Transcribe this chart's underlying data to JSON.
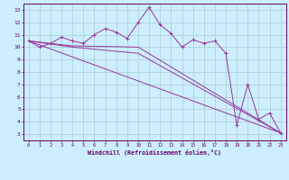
{
  "xlabel": "Windchill (Refroidissement éolien,°C)",
  "background_color": "#cceeff",
  "grid_color": "#aacccc",
  "line_color": "#993399",
  "xlim": [
    -0.5,
    23.5
  ],
  "ylim": [
    2.5,
    13.5
  ],
  "xticks": [
    0,
    1,
    2,
    3,
    4,
    5,
    6,
    7,
    8,
    9,
    10,
    11,
    12,
    13,
    14,
    15,
    16,
    17,
    18,
    19,
    20,
    21,
    22,
    23
  ],
  "yticks": [
    3,
    4,
    5,
    6,
    7,
    8,
    9,
    10,
    11,
    12,
    13
  ],
  "line1_x": [
    0,
    1,
    2,
    3,
    4,
    5,
    6,
    7,
    8,
    9,
    10,
    11,
    12,
    13,
    14,
    15,
    16,
    17,
    18,
    19,
    20,
    21,
    22,
    23
  ],
  "line1_y": [
    10.5,
    10.0,
    10.3,
    10.8,
    10.5,
    10.3,
    11.0,
    11.5,
    11.2,
    10.7,
    12.0,
    13.2,
    11.8,
    11.1,
    10.0,
    10.6,
    10.3,
    10.5,
    9.5,
    3.7,
    7.0,
    4.2,
    4.7,
    3.1
  ],
  "line2_x": [
    0,
    4,
    10,
    23
  ],
  "line2_y": [
    10.5,
    10.1,
    10.0,
    3.1
  ],
  "line3_x": [
    0,
    4,
    10,
    23
  ],
  "line3_y": [
    10.5,
    10.0,
    9.5,
    3.1
  ],
  "line4_x": [
    0,
    23
  ],
  "line4_y": [
    10.5,
    3.1
  ]
}
